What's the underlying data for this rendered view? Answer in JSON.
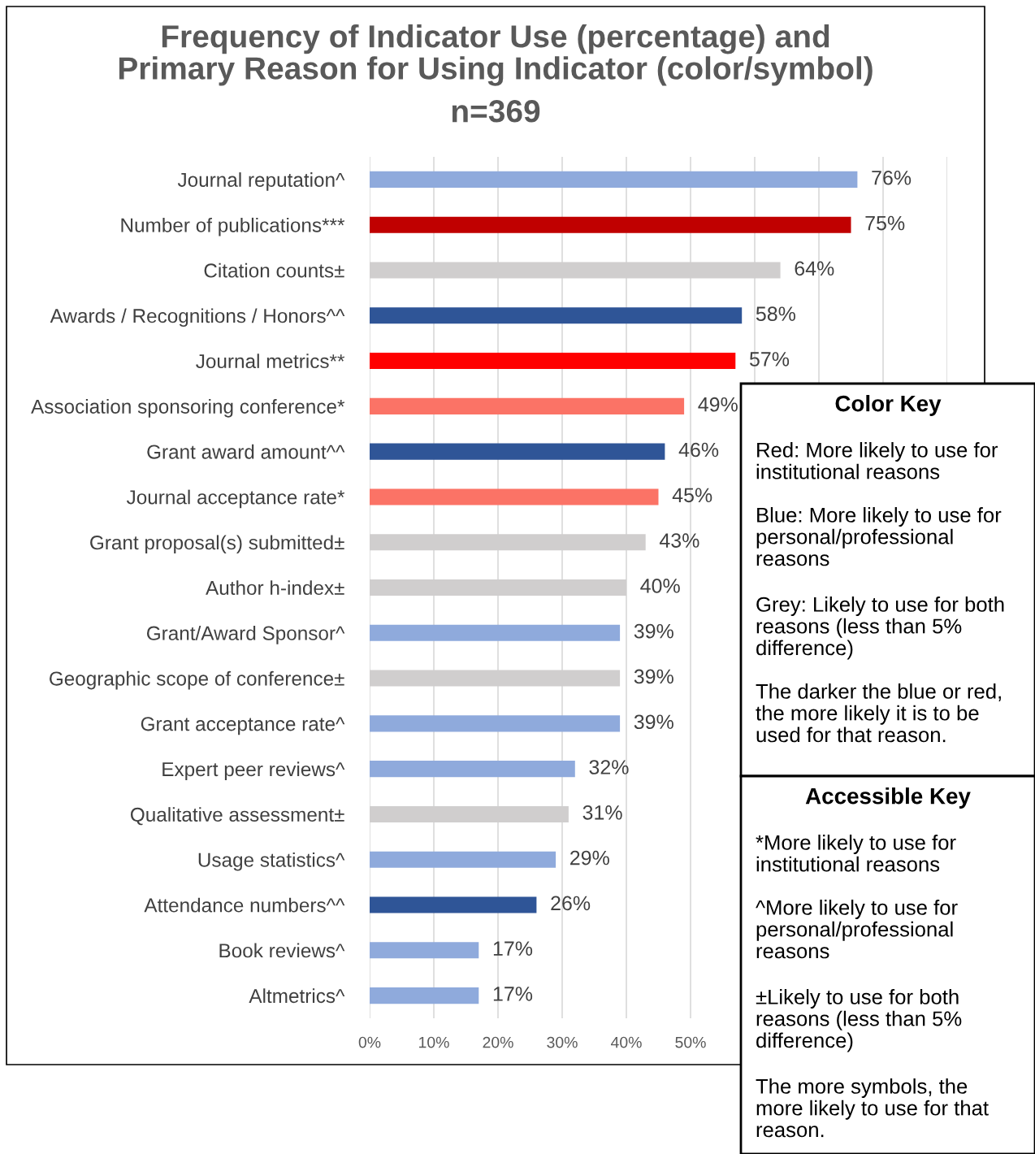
{
  "chart_data": {
    "type": "bar",
    "orientation": "horizontal",
    "title": "Frequency of Indicator Use (percentage) and\nPrimary Reason for Using Indicator (color/symbol)",
    "subtitle": "n=369",
    "categories": [
      "Journal reputation^",
      "Number of publications***",
      "Citation counts±",
      "Awards / Recognitions / Honors^^",
      "Journal metrics**",
      "Association sponsoring conference*",
      "Grant award amount^^",
      "Journal acceptance rate*",
      "Grant proposal(s) submitted±",
      "Author h-index±",
      "Grant/Award Sponsor^",
      "Geographic scope of conference±",
      "Grant acceptance rate^",
      "Expert peer reviews^",
      "Qualitative assessment±",
      "Usage statistics^",
      "Attendance numbers^^",
      "Book reviews^",
      "Altmetrics^"
    ],
    "values": [
      76,
      75,
      64,
      58,
      57,
      49,
      46,
      45,
      43,
      40,
      39,
      39,
      39,
      32,
      31,
      29,
      26,
      17,
      17
    ],
    "value_labels": [
      "76%",
      "75%",
      "64%",
      "58%",
      "57%",
      "49%",
      "46%",
      "45%",
      "43%",
      "40%",
      "39%",
      "39%",
      "39%",
      "32%",
      "31%",
      "29%",
      "26%",
      "17%",
      "17%"
    ],
    "colors": [
      "#8faadc",
      "#c00000",
      "#d0cece",
      "#2f5597",
      "#ff0000",
      "#fb7366",
      "#2f5597",
      "#fb7366",
      "#d0cece",
      "#d0cece",
      "#8faadc",
      "#d0cece",
      "#8faadc",
      "#8faadc",
      "#d0cece",
      "#8faadc",
      "#2f5597",
      "#8faadc",
      "#8faadc"
    ],
    "xlim": [
      0,
      90
    ],
    "xticks": [
      {
        "value": 0,
        "label": "0%"
      },
      {
        "value": 10,
        "label": "10%"
      },
      {
        "value": 20,
        "label": "20%"
      },
      {
        "value": 30,
        "label": "30%"
      },
      {
        "value": 40,
        "label": "40%"
      },
      {
        "value": 50,
        "label": "50%"
      },
      {
        "value": 60,
        "label": null
      },
      {
        "value": 70,
        "label": null
      },
      {
        "value": 80,
        "label": null
      },
      {
        "value": 90,
        "label": null
      }
    ],
    "grid": "x",
    "annotations": [
      "Color Key",
      "Red: More likely to use for\ninstitutional reasons",
      "Blue: More likely to use for\npersonal/professional\nreasons",
      "Grey: Likely to use for both\nreasons (less than 5%\ndifference)",
      "The darker the blue or red,\nthe more likely it is to be\nused for that reason.",
      "Accessible Key",
      "*More likely to use for\ninstitutional reasons",
      "^More likely to use for\npersonal/professional\nreasons",
      "±Likely to use for both\nreasons (less than 5%\ndifference)",
      "The more symbols, the\nmore likely to use for that\nreason."
    ]
  }
}
